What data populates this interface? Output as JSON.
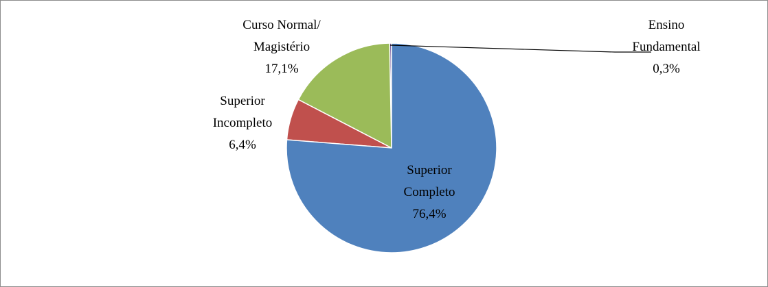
{
  "chart_data": {
    "type": "pie",
    "categories": [
      "Superior\nCompleto",
      "Superior\nIncompleto",
      "Curso Normal/\nMagistério",
      "Ensino\nFundamental"
    ],
    "values": [
      76.4,
      6.4,
      17.1,
      0.3
    ],
    "value_labels": [
      "76,4%",
      "6,4%",
      "17,1%",
      "0,3%"
    ],
    "colors": [
      "#4f81bd",
      "#c0504d",
      "#9bbb59",
      "#8064a2"
    ]
  }
}
